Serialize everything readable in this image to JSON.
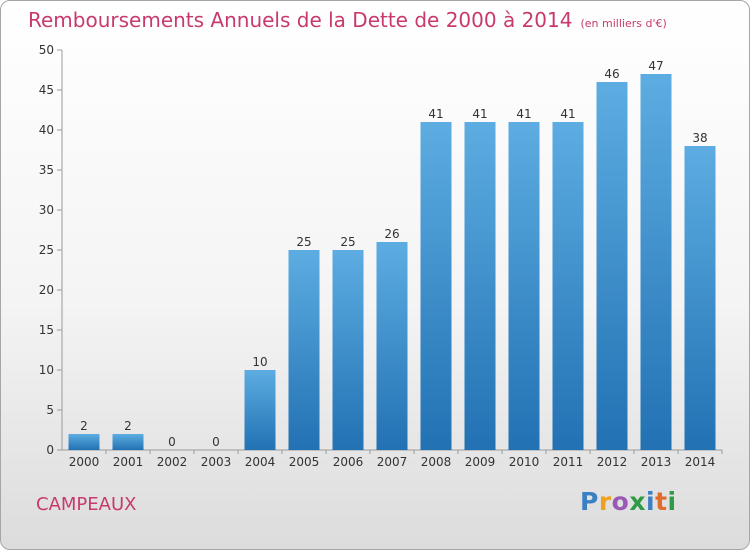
{
  "title": "Remboursements Annuels de la Dette de 2000 à 2014",
  "unit_note": "(en milliers d'€)",
  "commune": "CAMPEAUX",
  "brand": {
    "letters": [
      "P",
      "r",
      "o",
      "x",
      "i",
      "t",
      "i"
    ],
    "colors": [
      "#3b7fc4",
      "#f0a020",
      "#9b59b6",
      "#2f9b47",
      "#3b7fc4",
      "#e36c2a",
      "#2f9b47"
    ]
  },
  "colors": {
    "bar_top": "#5dade2",
    "bar_bottom": "#2271b3",
    "title": "#c83a6e"
  },
  "chart_data": {
    "type": "bar",
    "categories": [
      "2000",
      "2001",
      "2002",
      "2003",
      "2004",
      "2005",
      "2006",
      "2007",
      "2008",
      "2009",
      "2010",
      "2011",
      "2012",
      "2013",
      "2014"
    ],
    "values": [
      2,
      2,
      0,
      0,
      10,
      25,
      25,
      26,
      41,
      41,
      41,
      41,
      46,
      47,
      38
    ],
    "yticks": [
      0,
      5,
      10,
      15,
      20,
      25,
      30,
      35,
      40,
      45,
      50
    ],
    "ylim": [
      0,
      50
    ],
    "grid": false
  }
}
